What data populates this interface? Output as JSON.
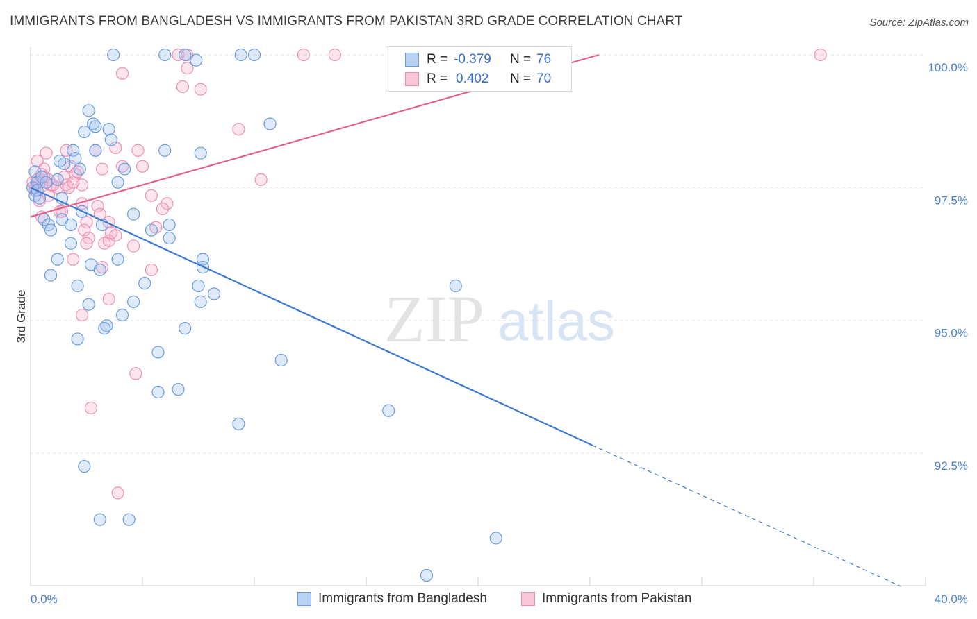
{
  "chart_data": {
    "type": "scatter",
    "title": "IMMIGRANTS FROM BANGLADESH VS IMMIGRANTS FROM PAKISTAN 3RD GRADE CORRELATION CHART",
    "source": "Source: ZipAtlas.com",
    "ylabel": "3rd Grade",
    "xlabel": "",
    "xlim": [
      0,
      40
    ],
    "ylim": [
      90.2,
      100.25
    ],
    "x_tick_labels": [
      "0.0%",
      "40.0%"
    ],
    "y_ticks": [
      {
        "value": 100.0,
        "label": "100.0%"
      },
      {
        "value": 97.5,
        "label": "97.5%"
      },
      {
        "value": 95.0,
        "label": "95.0%"
      },
      {
        "value": 92.5,
        "label": "92.5%"
      }
    ],
    "watermark": {
      "zip": "ZIP",
      "atlas": "atlas"
    },
    "legend": {
      "r_label": "R =",
      "n_label": "N =",
      "rows": [
        {
          "r": "-0.379",
          "n": "76"
        },
        {
          "r": "0.402",
          "n": "70"
        }
      ]
    },
    "series": [
      {
        "name": "Immigrants from Bangladesh",
        "color": "#6a9be0",
        "fill": "rgba(160,195,240,0.35)",
        "line_color": "#3a78d4",
        "trend": {
          "x": [
            0.0,
            25.1
          ],
          "y": [
            97.5,
            92.65
          ],
          "dashed_to": [
            38.9,
            89.99
          ]
        },
        "points": [
          [
            3.7,
            100.0
          ],
          [
            6.0,
            100.0
          ],
          [
            6.9,
            100.0
          ],
          [
            7.4,
            99.9
          ],
          [
            9.4,
            100.0
          ],
          [
            10.0,
            100.0
          ],
          [
            2.6,
            98.95
          ],
          [
            2.4,
            98.55
          ],
          [
            2.8,
            98.7
          ],
          [
            2.9,
            98.65
          ],
          [
            3.5,
            98.6
          ],
          [
            3.6,
            98.4
          ],
          [
            10.7,
            98.7
          ],
          [
            1.9,
            98.2
          ],
          [
            2.0,
            98.05
          ],
          [
            2.9,
            98.2
          ],
          [
            6.0,
            98.2
          ],
          [
            7.6,
            98.15
          ],
          [
            1.5,
            97.95
          ],
          [
            1.3,
            98.0
          ],
          [
            2.2,
            97.85
          ],
          [
            4.2,
            97.85
          ],
          [
            0.2,
            97.8
          ],
          [
            0.3,
            97.6
          ],
          [
            0.5,
            97.7
          ],
          [
            0.7,
            97.6
          ],
          [
            0.1,
            97.5
          ],
          [
            0.2,
            97.35
          ],
          [
            0.4,
            97.3
          ],
          [
            1.4,
            97.3
          ],
          [
            3.9,
            97.6
          ],
          [
            0.6,
            96.9
          ],
          [
            0.8,
            96.8
          ],
          [
            1.4,
            96.9
          ],
          [
            1.8,
            96.8
          ],
          [
            2.3,
            97.05
          ],
          [
            3.2,
            96.8
          ],
          [
            4.6,
            97.0
          ],
          [
            5.4,
            96.7
          ],
          [
            6.2,
            96.8
          ],
          [
            6.2,
            96.55
          ],
          [
            1.8,
            96.45
          ],
          [
            3.9,
            96.15
          ],
          [
            1.2,
            96.15
          ],
          [
            2.7,
            96.05
          ],
          [
            3.1,
            95.95
          ],
          [
            0.9,
            95.85
          ],
          [
            7.7,
            96.15
          ],
          [
            7.7,
            96.0
          ],
          [
            2.1,
            95.65
          ],
          [
            5.1,
            95.7
          ],
          [
            7.5,
            95.65
          ],
          [
            8.2,
            95.5
          ],
          [
            19.0,
            95.65
          ],
          [
            7.6,
            95.35
          ],
          [
            2.6,
            95.3
          ],
          [
            4.6,
            95.35
          ],
          [
            4.1,
            95.1
          ],
          [
            3.4,
            94.9
          ],
          [
            3.3,
            94.85
          ],
          [
            6.9,
            94.85
          ],
          [
            2.1,
            94.65
          ],
          [
            5.7,
            94.4
          ],
          [
            11.2,
            94.25
          ],
          [
            5.7,
            93.65
          ],
          [
            6.6,
            93.7
          ],
          [
            16.0,
            93.3
          ],
          [
            9.3,
            93.05
          ],
          [
            2.4,
            92.25
          ],
          [
            3.1,
            91.25
          ],
          [
            4.4,
            91.25
          ],
          [
            20.8,
            90.9
          ],
          [
            17.7,
            90.2
          ],
          [
            0.3,
            97.45
          ],
          [
            0.9,
            96.7
          ],
          [
            1.2,
            97.65
          ]
        ]
      },
      {
        "name": "Immigrants from Pakistan",
        "color": "#ee90b0",
        "fill": "rgba(245,180,205,0.35)",
        "line_color": "#e2608e",
        "trend": {
          "x": [
            0.0,
            25.4
          ],
          "y": [
            96.95,
            100.0
          ]
        },
        "points": [
          [
            6.6,
            100.0
          ],
          [
            7.0,
            100.0
          ],
          [
            12.2,
            100.0
          ],
          [
            13.6,
            100.0
          ],
          [
            35.3,
            100.0
          ],
          [
            7.0,
            99.75
          ],
          [
            4.1,
            99.65
          ],
          [
            6.8,
            99.4
          ],
          [
            7.6,
            99.35
          ],
          [
            9.3,
            98.6
          ],
          [
            10.3,
            97.65
          ],
          [
            1.6,
            98.2
          ],
          [
            2.9,
            98.2
          ],
          [
            3.8,
            98.25
          ],
          [
            4.8,
            98.2
          ],
          [
            0.7,
            98.15
          ],
          [
            0.3,
            98.0
          ],
          [
            1.8,
            97.9
          ],
          [
            0.6,
            97.85
          ],
          [
            2.1,
            97.8
          ],
          [
            3.2,
            97.85
          ],
          [
            4.1,
            97.9
          ],
          [
            5.0,
            97.9
          ],
          [
            0.5,
            97.75
          ],
          [
            1.5,
            97.7
          ],
          [
            0.4,
            97.6
          ],
          [
            0.9,
            97.55
          ],
          [
            1.2,
            97.5
          ],
          [
            1.6,
            97.55
          ],
          [
            1.7,
            97.5
          ],
          [
            2.0,
            97.75
          ],
          [
            0.2,
            97.5
          ],
          [
            0.1,
            97.6
          ],
          [
            0.3,
            97.65
          ],
          [
            0.8,
            97.65
          ],
          [
            2.3,
            97.55
          ],
          [
            5.4,
            97.35
          ],
          [
            1.3,
            97.05
          ],
          [
            0.5,
            96.95
          ],
          [
            3.0,
            97.15
          ],
          [
            3.1,
            97.0
          ],
          [
            3.5,
            96.85
          ],
          [
            5.6,
            96.75
          ],
          [
            6.1,
            97.2
          ],
          [
            5.9,
            97.1
          ],
          [
            2.3,
            97.2
          ],
          [
            2.5,
            96.85
          ],
          [
            2.4,
            96.7
          ],
          [
            2.6,
            96.55
          ],
          [
            3.5,
            96.5
          ],
          [
            3.3,
            96.45
          ],
          [
            3.6,
            96.65
          ],
          [
            3.8,
            96.6
          ],
          [
            4.6,
            96.4
          ],
          [
            2.5,
            96.45
          ],
          [
            1.9,
            96.15
          ],
          [
            3.2,
            96.0
          ],
          [
            5.4,
            95.95
          ],
          [
            3.5,
            95.4
          ],
          [
            2.3,
            95.1
          ],
          [
            4.7,
            94.0
          ],
          [
            2.7,
            93.35
          ],
          [
            3.9,
            91.75
          ],
          [
            1.0,
            97.55
          ],
          [
            0.6,
            97.7
          ],
          [
            1.9,
            97.6
          ],
          [
            0.2,
            97.45
          ],
          [
            0.8,
            97.35
          ],
          [
            1.4,
            97.05
          ],
          [
            0.4,
            97.25
          ]
        ]
      }
    ]
  }
}
